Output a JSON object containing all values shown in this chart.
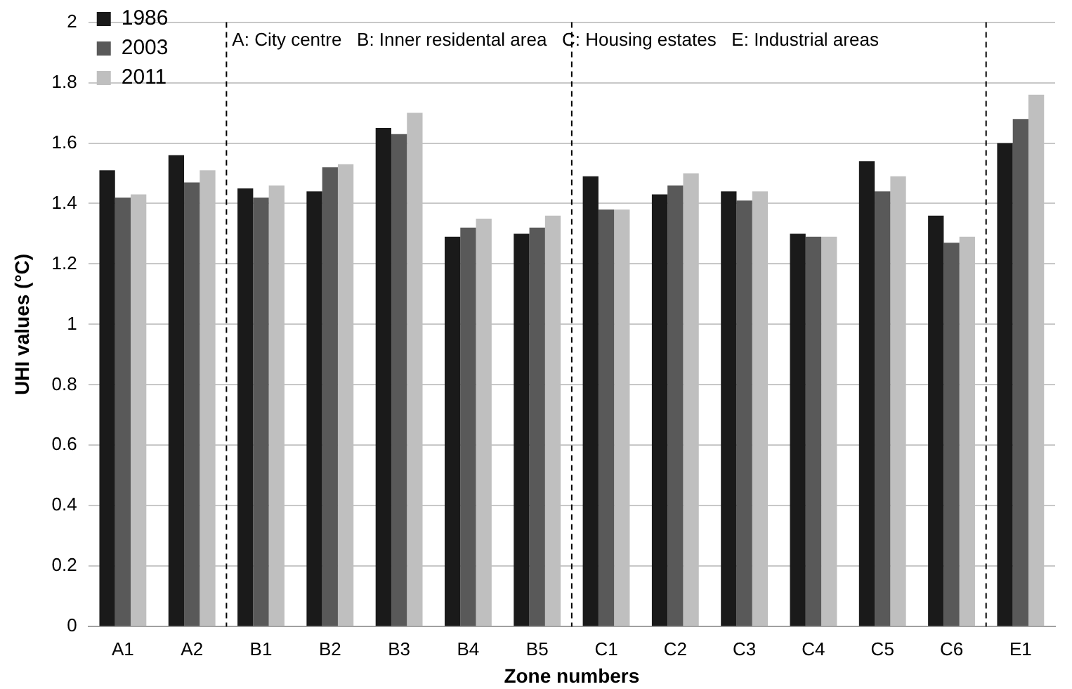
{
  "chart_data": {
    "type": "bar",
    "xlabel": "Zone numbers",
    "ylabel": "UHI values (°C)",
    "categories": [
      "A1",
      "A2",
      "B1",
      "B2",
      "B3",
      "B4",
      "B5",
      "C1",
      "C2",
      "C3",
      "C4",
      "C5",
      "C6",
      "E1"
    ],
    "series": [
      {
        "name": "1986",
        "color": "#1a1a1a",
        "values": [
          1.51,
          1.56,
          1.45,
          1.44,
          1.65,
          1.29,
          1.3,
          1.49,
          1.43,
          1.44,
          1.3,
          1.54,
          1.36,
          1.6
        ]
      },
      {
        "name": "2003",
        "color": "#595959",
        "values": [
          1.42,
          1.47,
          1.42,
          1.52,
          1.63,
          1.32,
          1.32,
          1.38,
          1.46,
          1.41,
          1.29,
          1.44,
          1.27,
          1.68
        ]
      },
      {
        "name": "2011",
        "color": "#bfbfbf",
        "values": [
          1.43,
          1.51,
          1.46,
          1.53,
          1.7,
          1.35,
          1.36,
          1.38,
          1.5,
          1.44,
          1.29,
          1.49,
          1.29,
          1.76
        ]
      }
    ],
    "ylim": [
      0,
      2
    ],
    "yticks": [
      0,
      0.2,
      0.4,
      0.6,
      0.8,
      1,
      1.2,
      1.4,
      1.6,
      1.8,
      2
    ],
    "grid": "y",
    "legend": "top left",
    "annotations": [
      "A: City centre   B: Inner residental area   C: Housing estates   E: Industrial areas"
    ]
  }
}
